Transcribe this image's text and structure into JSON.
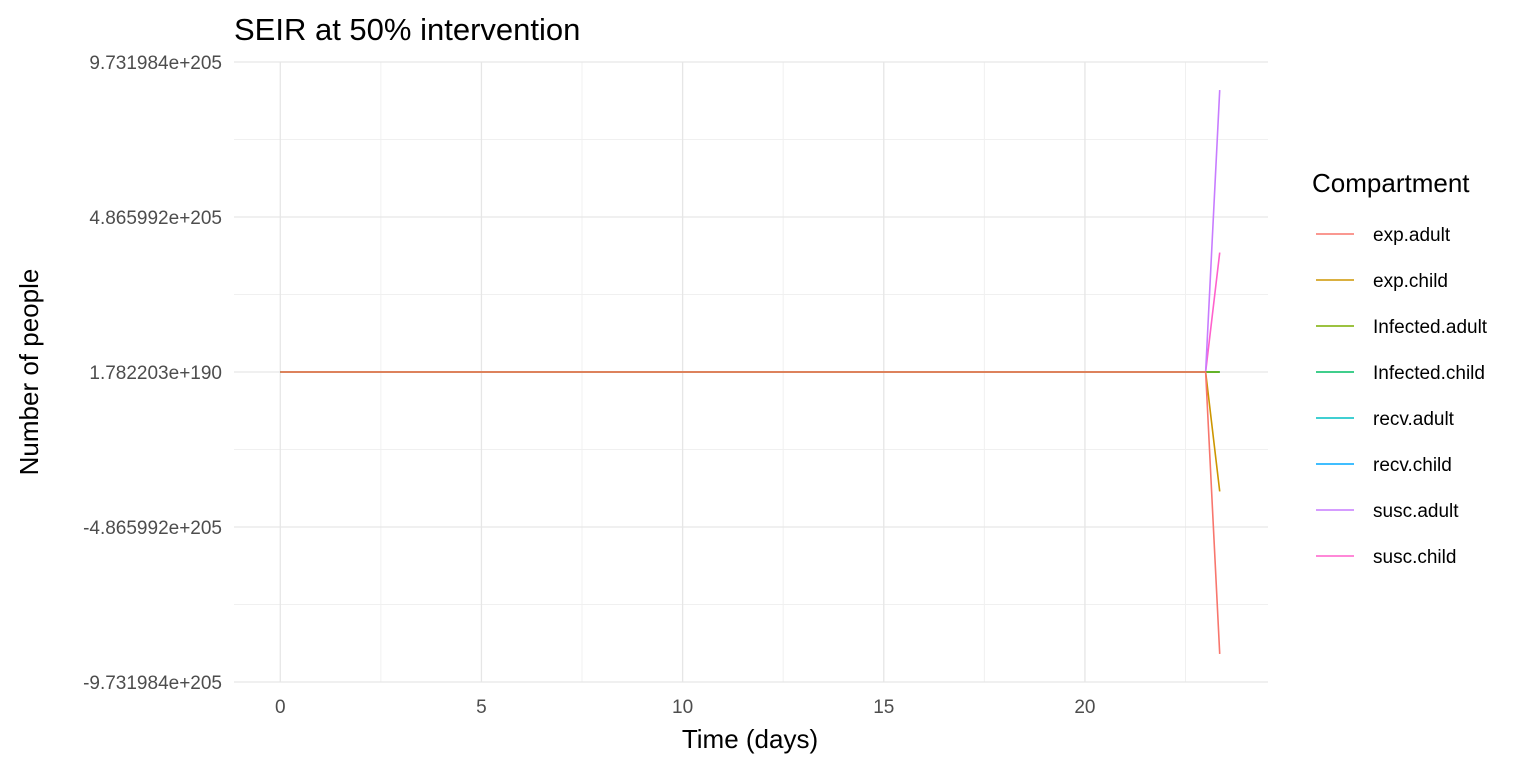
{
  "chart_data": {
    "type": "line",
    "title": "SEIR at 50% intervention",
    "xlabel": "Time (days)",
    "ylabel": "Number of people",
    "x_ticks": [
      0,
      5,
      10,
      15,
      20
    ],
    "y_ticks": [
      "-9.731984e+205",
      "-4.865992e+205",
      "1.782203e+190",
      "4.865992e+205",
      "9.731984e+205"
    ],
    "y_tick_values": [
      -9.731984e+205,
      -4.865992e+205,
      1.782203e+190,
      4.865992e+205,
      9.731984e+205
    ],
    "xlim": [
      -1.15,
      24.55
    ],
    "ylim": [
      -9.731984e+205,
      9.731984e+205
    ],
    "grid": true,
    "legend_title": "Compartment",
    "legend_position": "right",
    "x": [
      0,
      23,
      23.35
    ],
    "series": [
      {
        "name": "exp.adult",
        "color": "#F8766D",
        "values": [
          1.782203e+190,
          1.782203e+190,
          -8.85e+205
        ]
      },
      {
        "name": "exp.child",
        "color": "#CD9600",
        "values": [
          1.782203e+190,
          1.782203e+190,
          -3.75e+205
        ]
      },
      {
        "name": "Infected.adult",
        "color": "#7CAE00",
        "values": [
          1.782203e+190,
          1.782203e+190,
          1.782203e+190
        ]
      },
      {
        "name": "Infected.child",
        "color": "#00BE67",
        "values": [
          1.782203e+190,
          1.782203e+190,
          1.782203e+190
        ]
      },
      {
        "name": "recv.adult",
        "color": "#00BFC4",
        "values": [
          1.782203e+190,
          1.782203e+190,
          1.782203e+190
        ]
      },
      {
        "name": "recv.child",
        "color": "#00A9FF",
        "values": [
          1.782203e+190,
          1.782203e+190,
          1.782203e+190
        ]
      },
      {
        "name": "susc.adult",
        "color": "#C77CFF",
        "values": [
          1.782203e+190,
          1.782203e+190,
          8.85e+205
        ]
      },
      {
        "name": "susc.child",
        "color": "#FF61CC",
        "values": [
          1.782203e+190,
          1.782203e+190,
          3.75e+205
        ]
      }
    ]
  }
}
